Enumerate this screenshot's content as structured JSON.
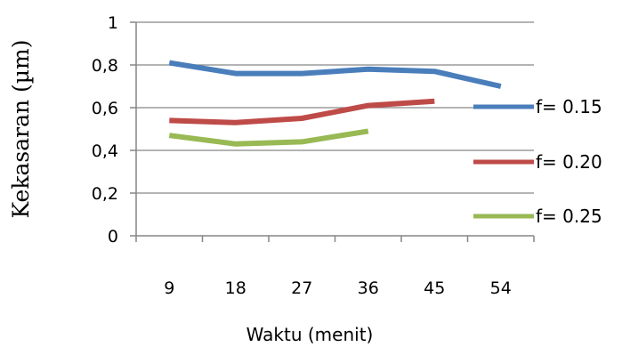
{
  "chart_data": {
    "type": "line",
    "title": "",
    "xlabel": "Waktu (menit)",
    "ylabel": "Kekasaran (µm)",
    "categories": [
      "9",
      "18",
      "27",
      "36",
      "45",
      "54"
    ],
    "ylim": [
      0,
      1
    ],
    "yticks": [
      "0",
      "0,2",
      "0,4",
      "0,6",
      "0,8",
      "1"
    ],
    "grid": true,
    "legend": "right",
    "series": [
      {
        "name": "f= 0.15",
        "color": "#4a7ebb",
        "values": [
          0.81,
          0.76,
          0.76,
          0.78,
          0.77,
          0.7
        ]
      },
      {
        "name": "f= 0.20",
        "color": "#be4b48",
        "values": [
          0.54,
          0.53,
          0.55,
          0.61,
          0.63,
          null
        ]
      },
      {
        "name": "f= 0.25",
        "color": "#98b954",
        "values": [
          0.47,
          0.43,
          0.44,
          0.49,
          null,
          null
        ]
      }
    ]
  }
}
